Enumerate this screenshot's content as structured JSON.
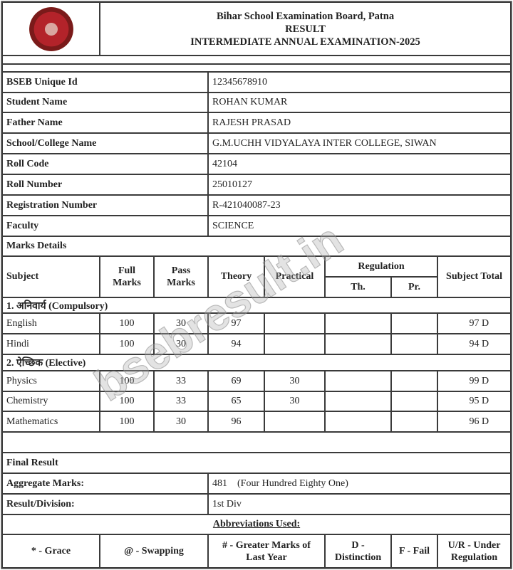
{
  "header": {
    "board": "Bihar School Examination Board, Patna",
    "result": "RESULT",
    "exam": "INTERMEDIATE ANNUAL EXAMINATION-2025",
    "logo_text": "Bihar School Examination Board"
  },
  "info": [
    {
      "label": "BSEB Unique Id",
      "value": "12345678910"
    },
    {
      "label": "Student Name",
      "value": "ROHAN KUMAR"
    },
    {
      "label": "Father Name",
      "value": "RAJESH PRASAD"
    },
    {
      "label": "School/College Name",
      "value": "G.M.UCHH VIDYALAYA INTER COLLEGE, SIWAN"
    },
    {
      "label": "Roll Code",
      "value": "42104"
    },
    {
      "label": "Roll Number",
      "value": "25010127"
    },
    {
      "label": "Registration Number",
      "value": "R-421040087-23"
    },
    {
      "label": "Faculty",
      "value": "SCIENCE"
    }
  ],
  "marks": {
    "title": "Marks Details",
    "headers": {
      "subject": "Subject",
      "full": "Full Marks",
      "pass": "Pass Marks",
      "theory": "Theory",
      "practical": "Practical",
      "regulation": "Regulation",
      "reg_th": "Th.",
      "reg_pr": "Pr.",
      "total": "Subject Total"
    },
    "groups": [
      {
        "title": "1. अनिवार्य (Compulsory)",
        "rows": [
          {
            "subject": "English",
            "full": "100",
            "pass": "30",
            "theory": "97",
            "practical": "",
            "th": "",
            "pr": "",
            "total": "97 D"
          },
          {
            "subject": "Hindi",
            "full": "100",
            "pass": "30",
            "theory": "94",
            "practical": "",
            "th": "",
            "pr": "",
            "total": "94 D"
          }
        ]
      },
      {
        "title": "2. ऐच्छिक (Elective)",
        "rows": [
          {
            "subject": "Physics",
            "full": "100",
            "pass": "33",
            "theory": "69",
            "practical": "30",
            "th": "",
            "pr": "",
            "total": "99 D"
          },
          {
            "subject": "Chemistry",
            "full": "100",
            "pass": "33",
            "theory": "65",
            "practical": "30",
            "th": "",
            "pr": "",
            "total": "95 D"
          },
          {
            "subject": "Mathematics",
            "full": "100",
            "pass": "30",
            "theory": "96",
            "practical": "",
            "th": "",
            "pr": "",
            "total": "96 D"
          }
        ]
      }
    ]
  },
  "final": {
    "title": "Final Result",
    "aggregate_label": "Aggregate Marks:",
    "aggregate_value": "481",
    "aggregate_words": "(Four Hundred Eighty One)",
    "division_label": "Result/Division:",
    "division_value": "1st Div"
  },
  "abbreviations": {
    "title": "Abbreviations Used:",
    "items": [
      "* - Grace",
      "@ - Swapping",
      "# - Greater Marks of Last Year",
      "D - Distinction",
      "F - Fail",
      "U/R - Under Regulation"
    ]
  },
  "watermark": "bsebresult.in"
}
